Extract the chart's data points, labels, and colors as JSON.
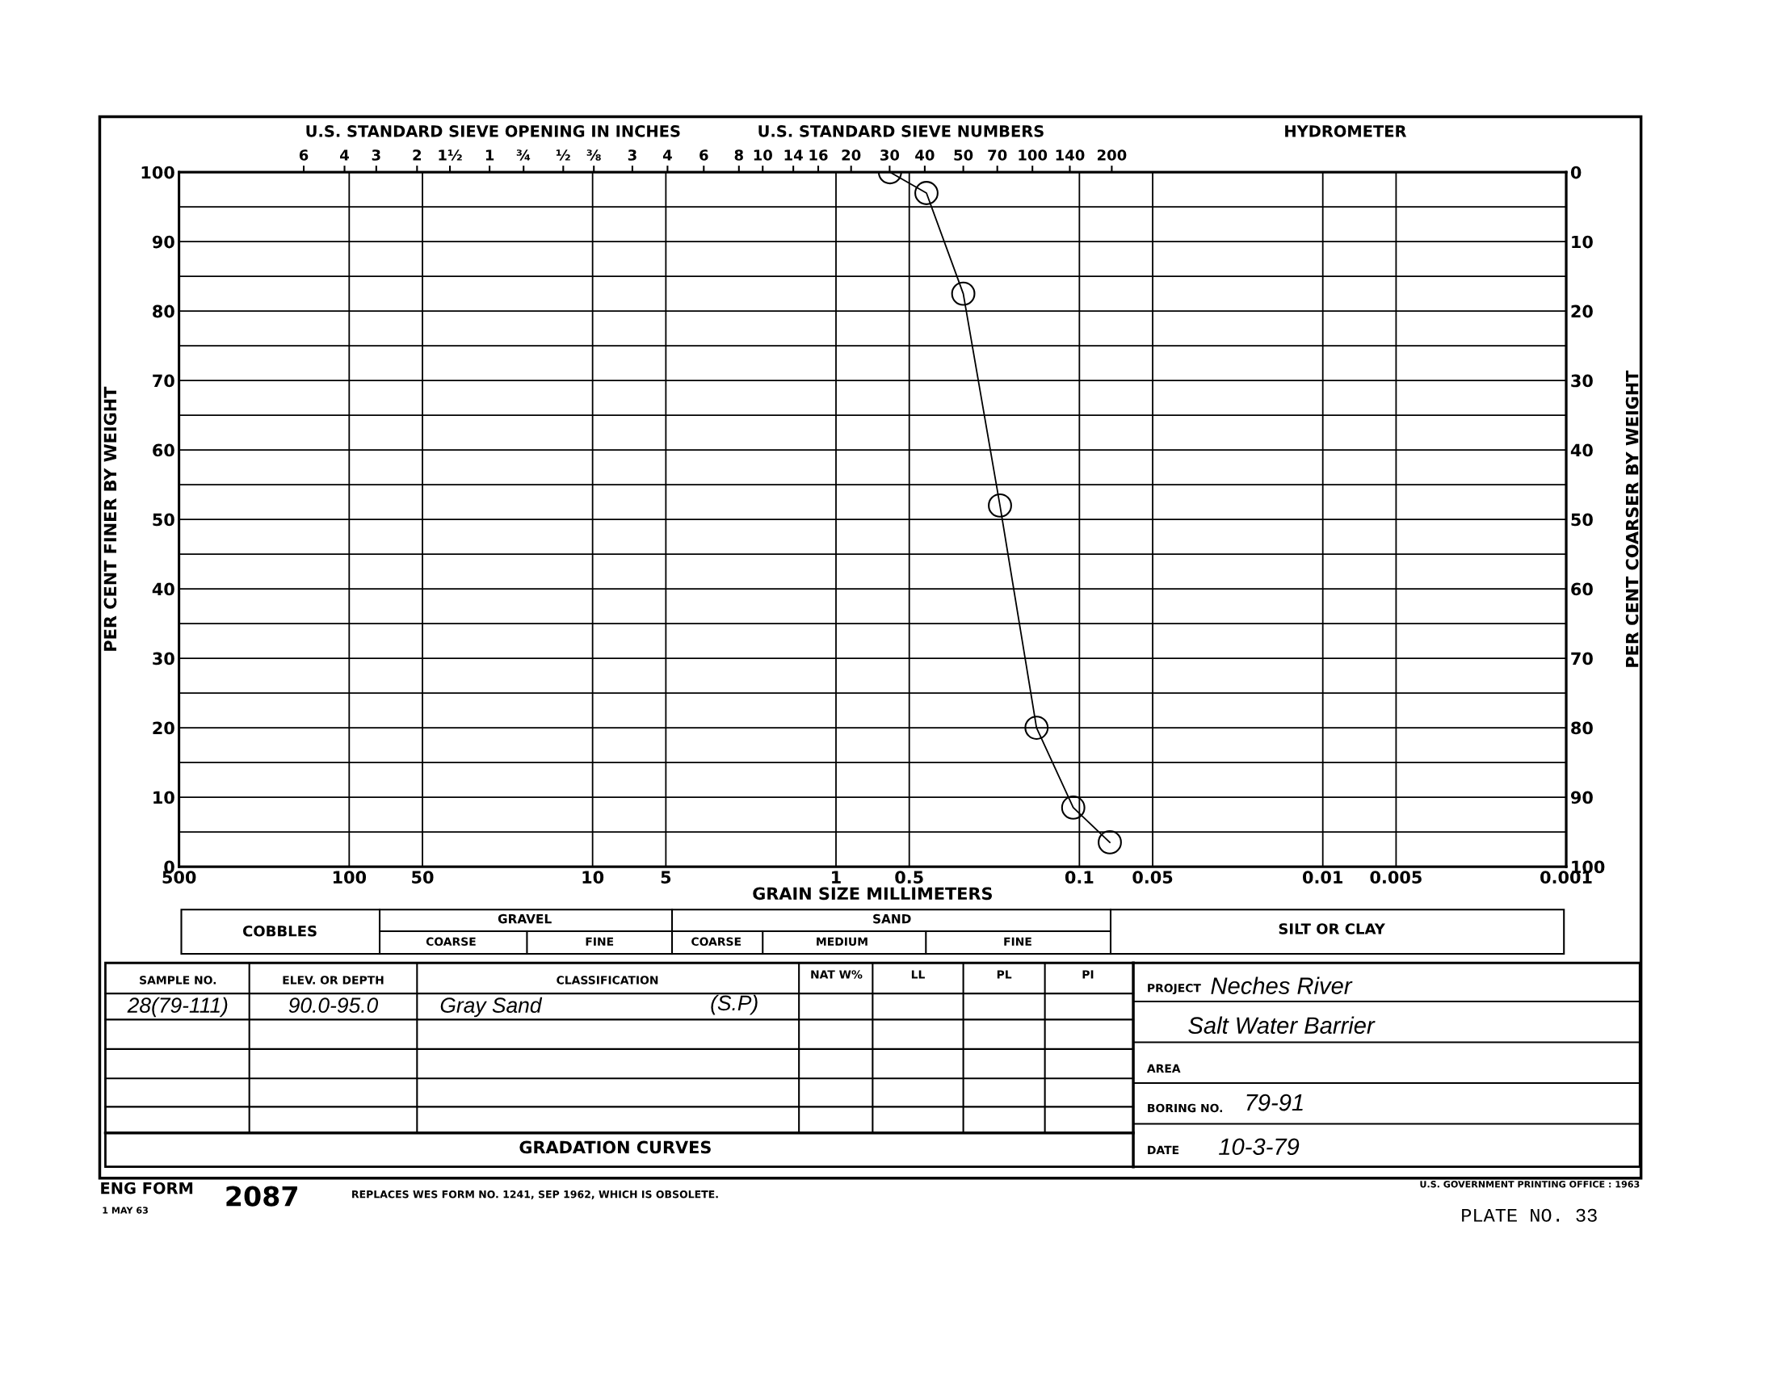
{
  "chart_data": {
    "type": "line",
    "xlabel": "GRAIN SIZE MILLIMETERS",
    "ylabel": "PER CENT FINER BY WEIGHT",
    "y2label": "PER CENT COARSER BY WEIGHT",
    "log": "x",
    "xlim": [
      500,
      0.001
    ],
    "xticks": [
      500,
      100,
      50,
      10,
      5,
      1,
      0.5,
      0.1,
      0.05,
      0.01,
      0.005,
      0.001
    ],
    "ylim": [
      0,
      100
    ],
    "yticks": [
      0,
      {
        "value": 5,
        "label": null
      },
      10,
      {
        "value": 15,
        "label": null
      },
      20,
      {
        "value": 25,
        "label": null
      },
      30,
      {
        "value": 35,
        "label": null
      },
      40,
      {
        "value": 45,
        "label": null
      },
      50,
      {
        "value": 55,
        "label": null
      },
      60,
      {
        "value": 65,
        "label": null
      },
      70,
      {
        "value": 75,
        "label": null
      },
      80,
      {
        "value": 85,
        "label": null
      },
      90,
      {
        "value": 95,
        "label": null
      },
      100
    ],
    "y2lim": [
      100,
      0
    ],
    "y2ticks": [
      0,
      10,
      20,
      30,
      40,
      50,
      60,
      70,
      80,
      90,
      100
    ],
    "grid": true,
    "marker": "circle",
    "line_style": "solid",
    "x": [
      0.6,
      0.425,
      0.3,
      0.212,
      0.15,
      0.106,
      0.075
    ],
    "series": [
      {
        "color": "#000000",
        "values": [
          100,
          97,
          82.5,
          52,
          20,
          8.5,
          3.5
        ]
      }
    ],
    "annotations": [
      "U.S. STANDARD SIEVE OPENING IN INCHES",
      "U.S. STANDARD SIEVE NUMBERS",
      "HYDROMETER",
      "SAMPLE NO.",
      "ELEV. OR DEPTH",
      "CLASSIFICATION",
      "NAT W%",
      "LL",
      "PL",
      "PI",
      "28(79-111)",
      "90.0-95.0",
      "Gray Sand",
      "(S.P)",
      "PROJECT",
      "Neches River",
      "Salt Water Barrier",
      "AREA",
      "BORING NO.",
      "79-91",
      "DATE",
      "10-3-79",
      "GRADATION CURVES",
      "ENG FORM",
      "1 MAY 63",
      "2087",
      "REPLACES WES FORM NO. 1241, SEP 1962, WHICH IS OBSOLETE.",
      "U.S. GOVERNMENT PRINTING OFFICE : 1963",
      "PLATE NO. 33",
      "COBBLES",
      "GRAVEL",
      "COARSE",
      "FINE",
      "SAND",
      "COARSE",
      "MEDIUM",
      "FINE",
      "SILT OR CLAY",
      "6",
      "4",
      "3",
      "2",
      "1½",
      "1",
      "¾",
      "½",
      "⅜",
      "3",
      "4",
      "6",
      "8",
      "10",
      "14",
      "16",
      "20",
      "30",
      "40",
      "50",
      "70",
      "100",
      "140",
      "200"
    ]
  }
}
